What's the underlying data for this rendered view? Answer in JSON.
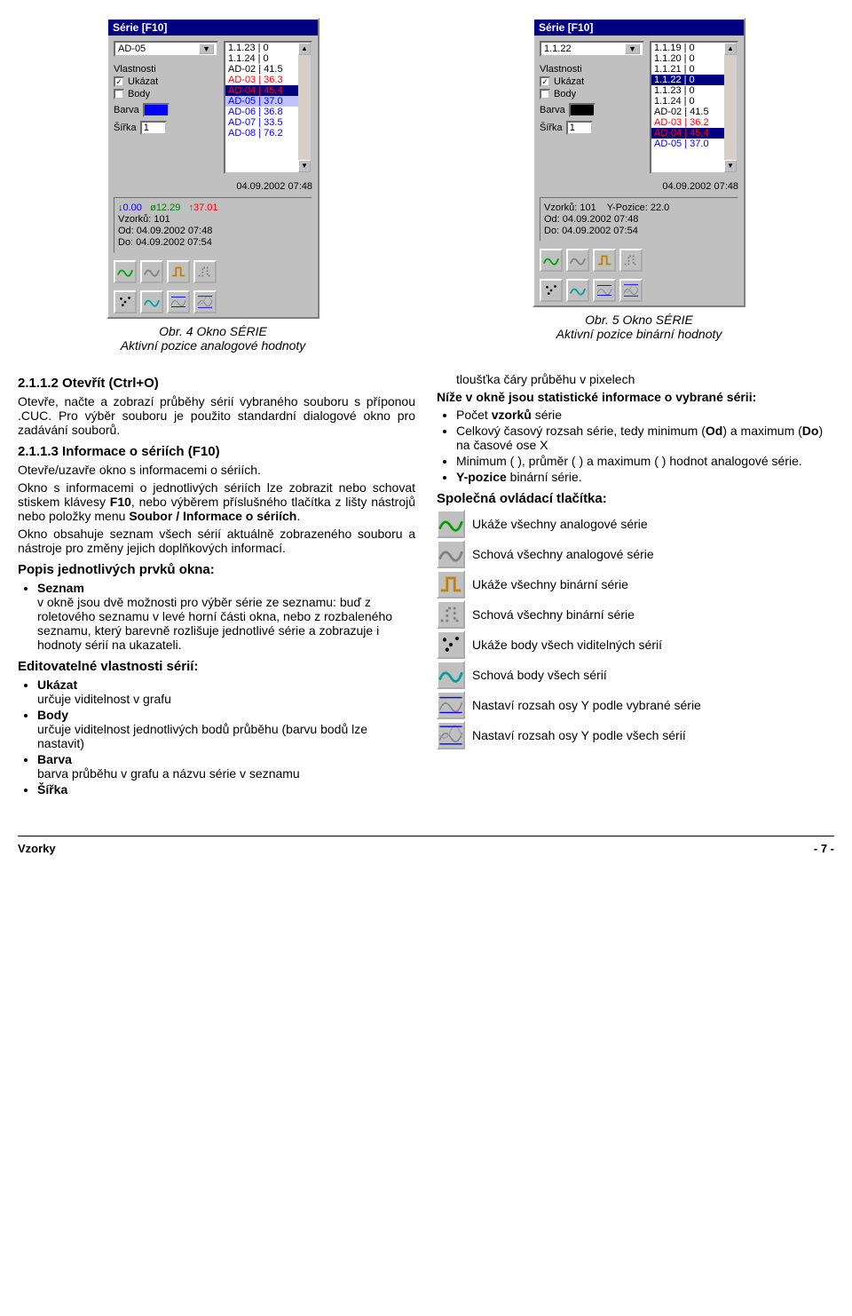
{
  "panels": {
    "left": {
      "title": "Série [F10]",
      "dropdown": "AD-05",
      "props_label": "Vlastnosti",
      "ukazat_label": "Ukázat",
      "ukazat_checked": true,
      "body_label": "Body",
      "body_checked": false,
      "barva_label": "Barva",
      "sirka_label": "Šířka",
      "sirka_value": "1",
      "list": [
        {
          "text": "1.1.23 | 0",
          "color": "#000000",
          "bg": "#ffffff"
        },
        {
          "text": "1.1.24 | 0",
          "color": "#000000",
          "bg": "#ffffff"
        },
        {
          "text": "AD-02 | 41.5",
          "color": "#000000",
          "bg": "#ffffff"
        },
        {
          "text": "AD-03 | 36.3",
          "color": "#ff0000",
          "bg": "#ffffff"
        },
        {
          "text": "AD-04 | 45.4",
          "color": "#ff0000",
          "bg": "#000080"
        },
        {
          "text": "AD-05 | 37.0",
          "color": "#0000ff",
          "bg": "#c0c0ff"
        },
        {
          "text": "AD-06 | 36.8",
          "color": "#0000ff",
          "bg": "#ffffff"
        },
        {
          "text": "AD-07 | 33.5",
          "color": "#0000ff",
          "bg": "#ffffff"
        },
        {
          "text": "AD-08 | 76.2",
          "color": "#0000ff",
          "bg": "#ffffff"
        }
      ],
      "timestamp": "04.09.2002 07:48",
      "stats": {
        "down": "↓0.00",
        "avg": "ø12.29",
        "up": "↑37.01",
        "vzorku": "Vzorků: 101",
        "od": "Od: 04.09.2002 07:48",
        "do": "Do: 04.09.2002 07:54"
      }
    },
    "right": {
      "title": "Série [F10]",
      "dropdown": "1.1.22",
      "props_label": "Vlastnosti",
      "ukazat_label": "Ukázat",
      "ukazat_checked": true,
      "body_label": "Body",
      "body_checked": false,
      "barva_label": "Barva",
      "sirka_label": "Šířka",
      "sirka_value": "1",
      "list": [
        {
          "text": "1.1.19 | 0",
          "color": "#000000",
          "bg": "#ffffff"
        },
        {
          "text": "1.1.20 | 0",
          "color": "#000000",
          "bg": "#ffffff"
        },
        {
          "text": "1.1.21 | 0",
          "color": "#000000",
          "bg": "#ffffff"
        },
        {
          "text": "1.1.22 | 0",
          "color": "#ffffff",
          "bg": "#000080"
        },
        {
          "text": "1.1.23 | 0",
          "color": "#000000",
          "bg": "#ffffff"
        },
        {
          "text": "1.1.24 | 0",
          "color": "#000000",
          "bg": "#ffffff"
        },
        {
          "text": "AD-02 | 41.5",
          "color": "#000000",
          "bg": "#ffffff"
        },
        {
          "text": "AD-03 | 36.2",
          "color": "#ff0000",
          "bg": "#ffffff"
        },
        {
          "text": "AD-04 | 45.4",
          "color": "#ff0000",
          "bg": "#000080"
        },
        {
          "text": "AD-05 | 37.0",
          "color": "#0000ff",
          "bg": "#ffffff"
        }
      ],
      "timestamp": "04.09.2002 07:48",
      "stats": {
        "vzorku": "Vzorků: 101",
        "ypos": "Y-Pozice: 22.0",
        "od": "Od: 04.09.2002 07:48",
        "do": "Do: 04.09.2002 07:54"
      }
    }
  },
  "captions": {
    "left_title": "Obr. 4  Okno SÉRIE",
    "left_sub": "Aktivní pozice analogové hodnoty",
    "right_title": "Obr. 5  Okno SÉRIE",
    "right_sub": "Aktivní pozice binární hodnoty"
  },
  "body": {
    "s212_heading": "2.1.1.2   Otevřít (Ctrl+O)",
    "s212_p1": "Otevře, načte a zobrazí průběhy sérií vybraného souboru s příponou .CUC. Pro výběr souboru je použito standardní dialogové okno pro zadávání souborů.",
    "s213_heading": "2.1.1.3   Informace o sériích (F10)",
    "s213_p1": "Otevře/uzavře okno s informacemi o sériích.",
    "s213_p2": "Okno s informacemi o jednotlivých sériích lze zobrazit nebo schovat stiskem klávesy F10, nebo výběrem příslušného tlačítka z lišty nástrojů nebo položky menu Soubor / Informace o sériích.",
    "s213_p3": "Okno obsahuje seznam všech sérií aktuálně zobrazeného souboru a nástroje pro změny jejich doplňkových informací.",
    "popis_heading": "Popis jednotlivých prvků okna:",
    "seznam_label": "Seznam",
    "seznam_text": "v okně jsou dvě možnosti pro výběr série ze seznamu: buď z roletového seznamu v levé horní části okna, nebo z rozbaleného seznamu, který barevně rozlišuje jednotlivé série a zobrazuje i hodnoty sérií na ukazateli.",
    "edit_heading": "Editovatelné vlastnosti sérií:",
    "edit_items": [
      {
        "k": "Ukázat",
        "v": "určuje viditelnost v grafu"
      },
      {
        "k": "Body",
        "v": "určuje viditelnost jednotlivých bodů průběhu (barvu bodů lze nastavit)"
      },
      {
        "k": "Barva",
        "v": "barva průběhu v grafu a názvu série v seznamu"
      },
      {
        "k": "Šířka",
        "v": ""
      }
    ],
    "right_first": "tloušťka čáry průběhu v pixelech",
    "nize_heading": "Níže v okně jsou statistické informace o vybrané sérii:",
    "nize_items": [
      "Počet vzorků série",
      "Celkový časový rozsah série, tedy minimum (Od) a maximum (Do) na časové ose X",
      "Minimum ( ), průměr ( ) a maximum ( ) hodnot analogové série.",
      "Y-pozice binární série."
    ],
    "nize_bold": [
      "vzorků",
      "(Od)",
      "(Do)",
      "Y-pozice"
    ],
    "spolecna_heading": "Společná ovládací tlačítka:",
    "buttons": [
      {
        "text": "Ukáže všechny analogové série",
        "icon": "show-analog"
      },
      {
        "text": "Schová všechny analogové série",
        "icon": "hide-analog"
      },
      {
        "text": "Ukáže všechny binární série",
        "icon": "show-binary"
      },
      {
        "text": "Schová všechny binární série",
        "icon": "hide-binary"
      },
      {
        "text": "Ukáže body všech viditelných sérií",
        "icon": "show-points"
      },
      {
        "text": "Schová body všech sérií",
        "icon": "hide-points"
      },
      {
        "text": "Nastaví rozsah osy Y podle vybrané série",
        "icon": "yrange-sel"
      },
      {
        "text": "Nastaví rozsah osy Y podle všech sérií",
        "icon": "yrange-all"
      }
    ]
  },
  "footer": {
    "left": "Vzorky",
    "right": "- 7 -"
  },
  "colors": {
    "panel_bg": "#c0c0c0",
    "titlebar_bg": "#000080",
    "titlebar_fg": "#ffffff",
    "accent_green": "#008000",
    "accent_red": "#ff0000",
    "accent_blue": "#0000ff"
  }
}
